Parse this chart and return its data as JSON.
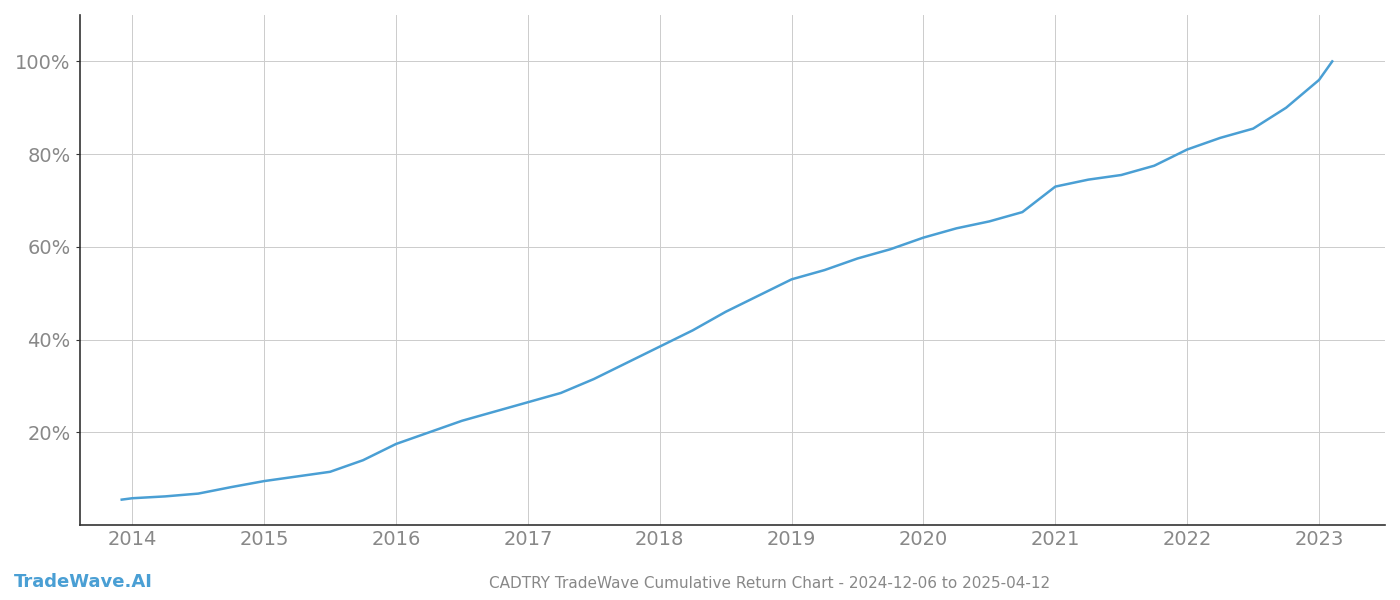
{
  "title": "CADTRY TradeWave Cumulative Return Chart - 2024-12-06 to 2025-04-12",
  "watermark": "TradeWave.AI",
  "line_color": "#4a9fd4",
  "line_width": 1.8,
  "background_color": "#ffffff",
  "grid_color": "#cccccc",
  "x_years": [
    2013.92,
    2014.0,
    2014.25,
    2014.5,
    2014.75,
    2015.0,
    2015.25,
    2015.5,
    2015.75,
    2016.0,
    2016.25,
    2016.5,
    2016.75,
    2017.0,
    2017.25,
    2017.5,
    2017.75,
    2018.0,
    2018.25,
    2018.5,
    2018.75,
    2019.0,
    2019.25,
    2019.5,
    2019.75,
    2020.0,
    2020.25,
    2020.5,
    2020.75,
    2021.0,
    2021.25,
    2021.5,
    2021.75,
    2022.0,
    2022.25,
    2022.5,
    2022.75,
    2023.0,
    2023.1
  ],
  "y_values": [
    0.055,
    0.058,
    0.062,
    0.068,
    0.082,
    0.095,
    0.105,
    0.115,
    0.14,
    0.175,
    0.2,
    0.225,
    0.245,
    0.265,
    0.285,
    0.315,
    0.35,
    0.385,
    0.42,
    0.46,
    0.495,
    0.53,
    0.55,
    0.575,
    0.595,
    0.62,
    0.64,
    0.655,
    0.675,
    0.73,
    0.745,
    0.755,
    0.775,
    0.81,
    0.835,
    0.855,
    0.9,
    0.96,
    1.0
  ],
  "xlim": [
    2013.6,
    2023.5
  ],
  "ylim": [
    0.0,
    1.1
  ],
  "yticks": [
    0.2,
    0.4,
    0.6,
    0.8,
    1.0
  ],
  "xticks": [
    2014,
    2015,
    2016,
    2017,
    2018,
    2019,
    2020,
    2021,
    2022,
    2023
  ],
  "tick_color": "#888888",
  "left_spine_color": "#333333",
  "bottom_spine_color": "#333333",
  "title_fontsize": 11,
  "tick_fontsize": 14,
  "watermark_fontsize": 13
}
